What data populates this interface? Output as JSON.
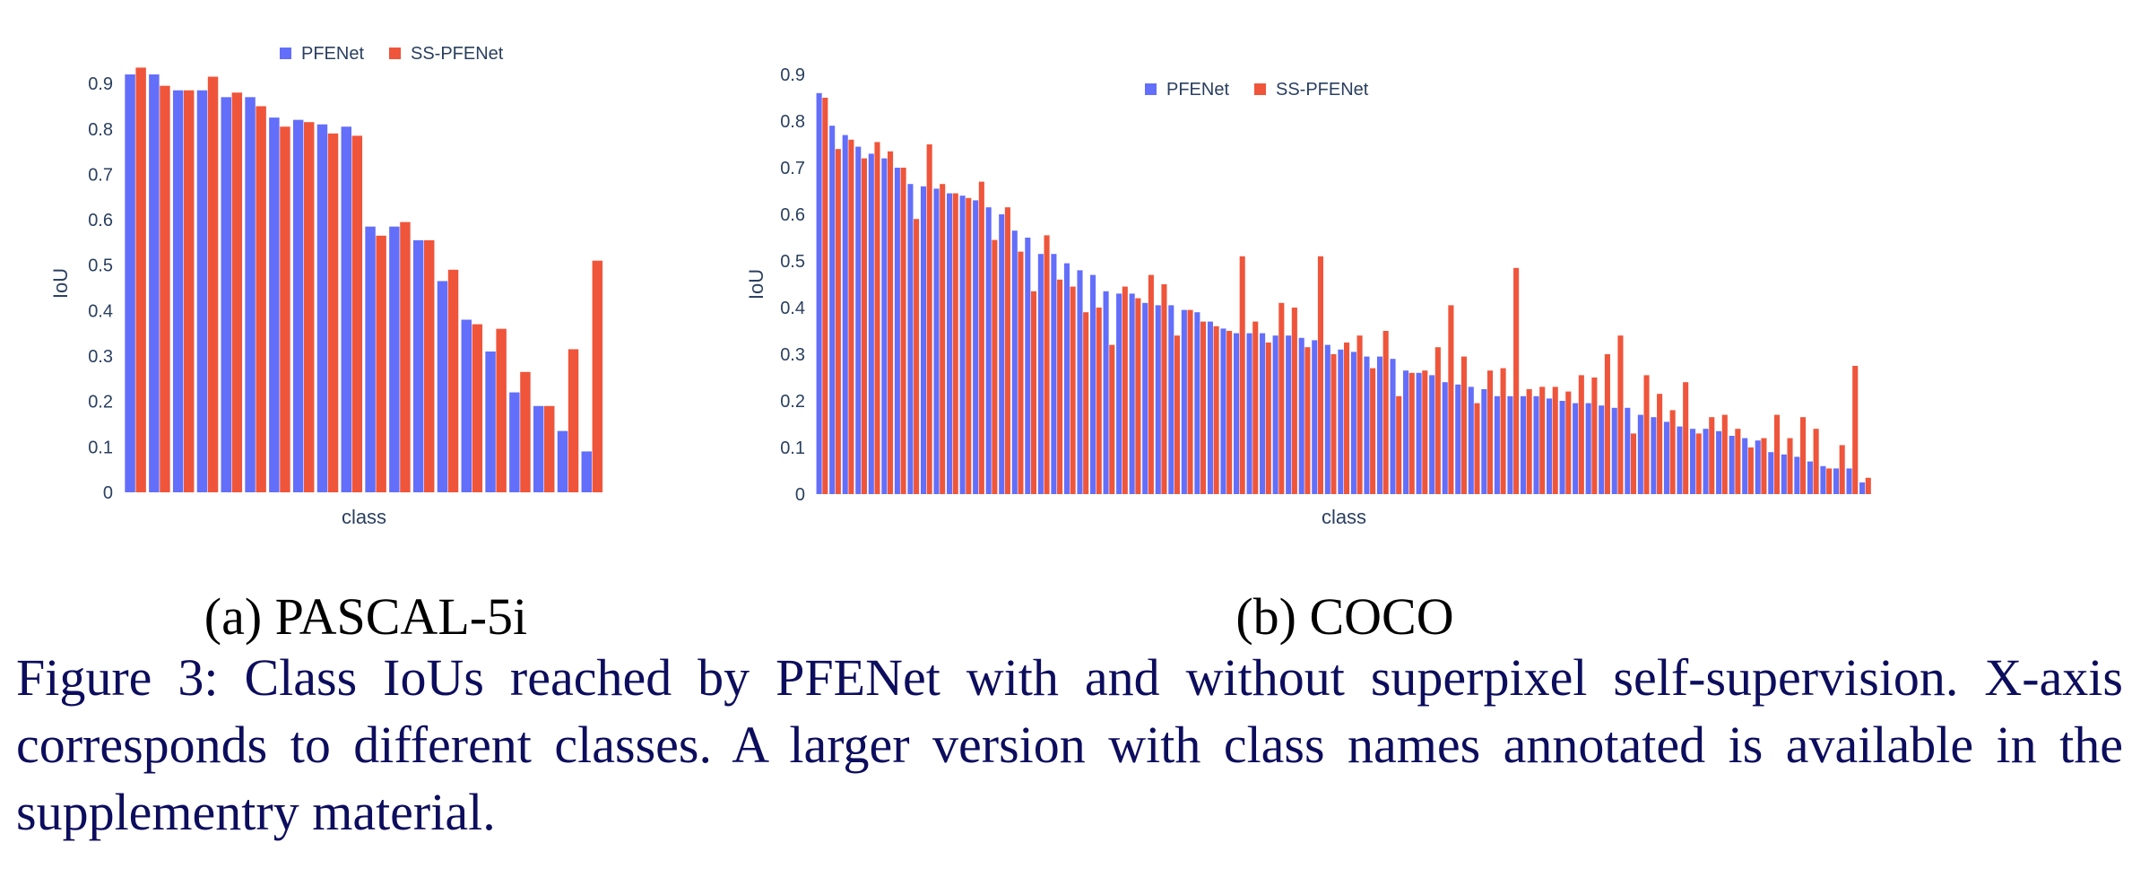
{
  "colors": {
    "series_a": "#636efa",
    "series_b": "#ef553b",
    "text": "#2a3f5f"
  },
  "chart_data": [
    {
      "type": "bar",
      "subcaption": "(a) PASCAL-5i",
      "xlabel": "class",
      "ylabel": "IoU",
      "ylim": [
        0,
        0.92
      ],
      "yticks": [
        0,
        0.1,
        0.2,
        0.3,
        0.4,
        0.5,
        0.6,
        0.7,
        0.8,
        0.9
      ],
      "legend": "top",
      "series": [
        {
          "name": "PFENet",
          "values": [
            0.92,
            0.92,
            0.885,
            0.885,
            0.87,
            0.87,
            0.825,
            0.82,
            0.81,
            0.805,
            0.585,
            0.585,
            0.555,
            0.465,
            0.38,
            0.31,
            0.22,
            0.19,
            0.135,
            0.09
          ]
        },
        {
          "name": "SS-PFENet",
          "values": [
            0.935,
            0.895,
            0.885,
            0.915,
            0.88,
            0.85,
            0.805,
            0.815,
            0.79,
            0.785,
            0.565,
            0.595,
            0.555,
            0.49,
            0.37,
            0.36,
            0.265,
            0.19,
            0.315,
            0.51
          ]
        }
      ]
    },
    {
      "type": "bar",
      "subcaption": "(b) COCO",
      "xlabel": "class",
      "ylabel": "IoU",
      "ylim": [
        0,
        0.9
      ],
      "yticks": [
        0,
        0.1,
        0.2,
        0.3,
        0.4,
        0.5,
        0.6,
        0.7,
        0.8,
        0.9
      ],
      "legend": "top",
      "series": [
        {
          "name": "PFENet",
          "values": [
            0.86,
            0.79,
            0.77,
            0.745,
            0.73,
            0.72,
            0.7,
            0.665,
            0.66,
            0.655,
            0.645,
            0.64,
            0.63,
            0.615,
            0.6,
            0.565,
            0.55,
            0.515,
            0.515,
            0.495,
            0.48,
            0.47,
            0.435,
            0.43,
            0.43,
            0.41,
            0.405,
            0.405,
            0.395,
            0.39,
            0.37,
            0.355,
            0.345,
            0.345,
            0.345,
            0.34,
            0.34,
            0.335,
            0.33,
            0.32,
            0.31,
            0.305,
            0.295,
            0.295,
            0.29,
            0.265,
            0.26,
            0.255,
            0.24,
            0.235,
            0.23,
            0.225,
            0.21,
            0.21,
            0.21,
            0.21,
            0.205,
            0.2,
            0.195,
            0.195,
            0.19,
            0.185,
            0.185,
            0.17,
            0.165,
            0.155,
            0.145,
            0.14,
            0.14,
            0.135,
            0.125,
            0.12,
            0.115,
            0.09,
            0.085,
            0.08,
            0.07,
            0.06,
            0.055,
            0.055,
            0.025
          ]
        },
        {
          "name": "SS-PFENet",
          "values": [
            0.85,
            0.74,
            0.76,
            0.72,
            0.755,
            0.735,
            0.7,
            0.59,
            0.75,
            0.665,
            0.645,
            0.635,
            0.67,
            0.545,
            0.615,
            0.52,
            0.435,
            0.555,
            0.46,
            0.445,
            0.39,
            0.4,
            0.32,
            0.445,
            0.42,
            0.47,
            0.45,
            0.34,
            0.395,
            0.37,
            0.36,
            0.35,
            0.51,
            0.37,
            0.325,
            0.41,
            0.4,
            0.315,
            0.51,
            0.3,
            0.325,
            0.34,
            0.27,
            0.35,
            0.21,
            0.26,
            0.265,
            0.315,
            0.405,
            0.295,
            0.195,
            0.265,
            0.27,
            0.485,
            0.225,
            0.23,
            0.23,
            0.22,
            0.255,
            0.25,
            0.3,
            0.34,
            0.13,
            0.255,
            0.215,
            0.18,
            0.24,
            0.13,
            0.165,
            0.17,
            0.14,
            0.1,
            0.12,
            0.17,
            0.12,
            0.165,
            0.14,
            0.055,
            0.105,
            0.275,
            0.035
          ]
        }
      ]
    }
  ],
  "caption": "Figure 3: Class IoUs reached by PFENet with and without superpixel self-supervision. X-axis corresponds to different classes. A larger version with class names annotated is available in the supplementry material."
}
